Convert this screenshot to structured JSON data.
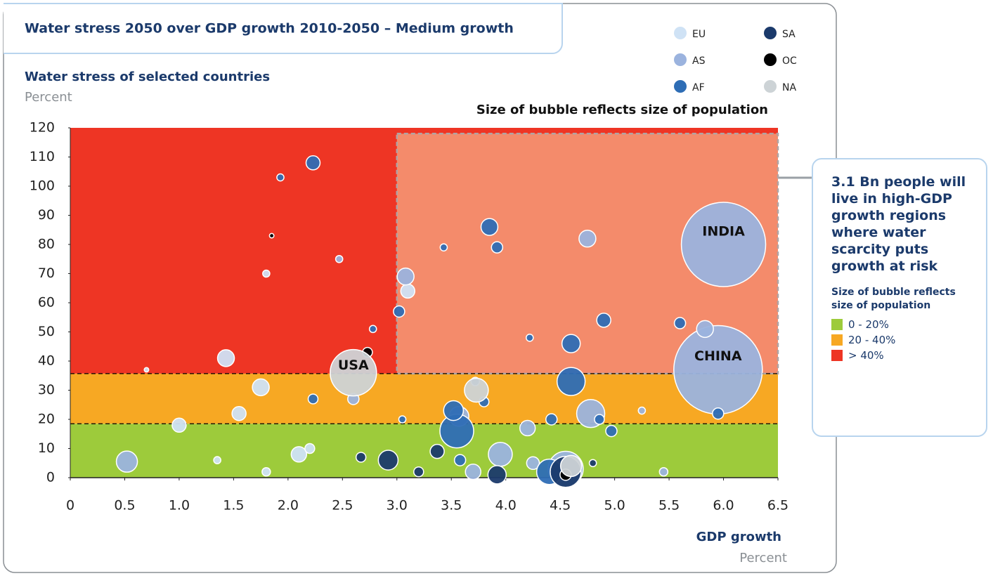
{
  "chart_data": {
    "type": "bubble",
    "title": "Water stress 2050 over GDP growth 2010-2050 – Medium growth",
    "y_label": "Water stress of selected countries",
    "y_unit": "Percent",
    "x_label": "GDP growth",
    "x_unit": "Percent",
    "size_note": "Size of bubble reflects size of population",
    "xlim": [
      0,
      6.5
    ],
    "ylim": [
      0,
      120
    ],
    "xticks": [
      0,
      0.5,
      {
        "value": 1,
        "label": "1.0"
      },
      1.5,
      {
        "value": 2,
        "label": "2.0"
      },
      2.5,
      {
        "value": 3,
        "label": "3.0"
      },
      3.5,
      {
        "value": 4,
        "label": "4.0"
      },
      4.5,
      {
        "value": 5,
        "label": "5.0"
      },
      5.5,
      {
        "value": 6,
        "label": "6.0"
      },
      6.5
    ],
    "yticks": [
      0,
      10,
      20,
      30,
      40,
      50,
      60,
      70,
      80,
      90,
      100,
      110,
      120
    ],
    "zones": [
      {
        "label": "0 - 20%",
        "color": "#9dcb3b",
        "from": 0,
        "to": 18.5
      },
      {
        "label": "20 - 40%",
        "color": "#f7a823",
        "from": 18.5,
        "to": 35.7
      },
      {
        "label": "> 40%",
        "color": "#ee3524",
        "from": 35.7,
        "to": 120
      }
    ],
    "highlight": {
      "color": "#f48b6b",
      "x": [
        3.0,
        6.5
      ],
      "y": [
        35.7,
        118
      ]
    },
    "callout": "3.1 Bn people will live in high-GDP growth regions where water scarcity puts growth at risk",
    "zone_legend_title": "Size of bubble reflects size of population",
    "series": [
      {
        "name": "EU",
        "color": "#cfe2f5",
        "x": [
          1.0,
          1.75,
          1.55,
          1.43,
          1.8,
          3.1,
          2.1,
          2.2,
          1.8,
          1.35,
          0.7
        ],
        "values": [
          18,
          31,
          22,
          41,
          70,
          64,
          8,
          10,
          2,
          6,
          37
        ],
        "sizes": [
          39,
          56,
          39,
          56,
          10,
          39,
          47,
          19,
          14,
          10,
          4
        ],
        "point_labels": [
          null,
          null,
          null,
          null,
          null,
          null,
          null,
          null,
          null,
          null,
          null
        ]
      },
      {
        "name": "AS",
        "color": "#9bb3de",
        "x": [
          6.0,
          5.95,
          0.52,
          3.08,
          4.75,
          5.83,
          4.78,
          3.95,
          3.57,
          3.7,
          2.6,
          4.2,
          4.25,
          2.47,
          5.25,
          5.45,
          4.55
        ],
        "values": [
          80,
          37,
          5.5,
          69,
          82,
          51,
          22,
          8,
          21,
          2,
          27,
          17,
          5,
          75,
          23,
          2,
          3
        ],
        "sizes": [
          1406,
          1550,
          88,
          56,
          56,
          56,
          156,
          113,
          77,
          47,
          25,
          47,
          32,
          10,
          10,
          14,
          244
        ],
        "point_labels": [
          "INDIA",
          "CHINA",
          null,
          null,
          null,
          null,
          null,
          null,
          null,
          null,
          null,
          null,
          null,
          null,
          null,
          null,
          null
        ]
      },
      {
        "name": "AF",
        "color": "#2e6db5",
        "x": [
          2.23,
          3.85,
          3.92,
          3.43,
          3.02,
          4.9,
          5.6,
          4.6,
          4.6,
          3.55,
          3.52,
          4.42,
          4.97,
          5.95,
          4.4,
          3.58,
          3.8,
          2.23,
          2.78,
          1.93,
          4.22,
          3.72,
          3.05,
          4.86
        ],
        "values": [
          108,
          86,
          79,
          79,
          57,
          54,
          53,
          46,
          33,
          16,
          23,
          20,
          16,
          22,
          2,
          6,
          26,
          27,
          51,
          103,
          48,
          33,
          20,
          20
        ],
        "sizes": [
          39,
          56,
          25,
          10,
          25,
          39,
          25,
          66,
          156,
          225,
          77,
          25,
          25,
          25,
          127,
          25,
          19,
          19,
          10,
          10,
          10,
          14,
          10,
          19
        ],
        "point_labels": [
          null,
          null,
          null,
          null,
          null,
          null,
          null,
          null,
          null,
          null,
          null,
          null,
          null,
          null,
          null,
          null,
          null,
          null,
          null,
          null,
          null,
          null,
          null,
          null
        ]
      },
      {
        "name": "SA",
        "color": "#1b3a6b",
        "x": [
          2.92,
          3.37,
          3.92,
          4.55,
          2.67,
          4.8,
          3.2
        ],
        "values": [
          6,
          9,
          1,
          2,
          7,
          5,
          2
        ],
        "sizes": [
          77,
          39,
          66,
          189,
          19,
          10,
          19
        ],
        "point_labels": [
          null,
          null,
          null,
          null,
          null,
          null,
          null
        ]
      },
      {
        "name": "OC",
        "color": "#000000",
        "x": [
          1.85,
          2.73,
          4.55
        ],
        "values": [
          83,
          43,
          1
        ],
        "sizes": [
          4,
          19,
          25
        ],
        "point_labels": [
          null,
          null,
          null
        ]
      },
      {
        "name": "NA",
        "color": "#cdd3d6",
        "x": [
          2.6,
          3.73,
          4.6
        ],
        "values": [
          36,
          30,
          4
        ],
        "sizes": [
          425,
          113,
          88
        ],
        "point_labels": [
          "USA",
          null,
          null
        ]
      }
    ]
  }
}
